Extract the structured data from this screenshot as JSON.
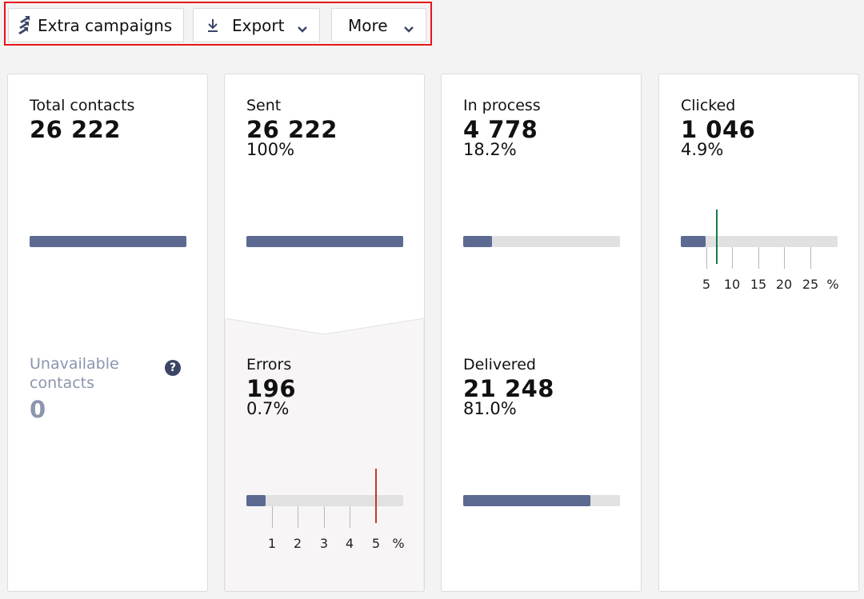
{
  "toolbar": {
    "extra_label": "Extra campaigns",
    "export_label": "Export",
    "more_label": "More"
  },
  "cards": {
    "total": {
      "label": "Total contacts",
      "value": "26 222",
      "bar_fraction": 1.0,
      "unavailable_label": "Unavailable contacts",
      "unavailable_value": "0",
      "help_glyph": "?"
    },
    "sent": {
      "label": "Sent",
      "value": "26 222",
      "percent": "100%",
      "bar_fraction": 1.0
    },
    "errors": {
      "label": "Errors",
      "value": "196",
      "percent": "0.7%",
      "bar_fraction": 0.12,
      "scale_ticks": [
        "1",
        "2",
        "3",
        "4",
        "5"
      ],
      "scale_unit": "%",
      "threshold": 5,
      "marker_color": "#c0392b"
    },
    "in_process": {
      "label": "In process",
      "value": "4 778",
      "percent": "18.2%",
      "bar_fraction": 0.182
    },
    "delivered": {
      "label": "Delivered",
      "value": "21 248",
      "percent": "81.0%",
      "bar_fraction": 0.81
    },
    "clicked": {
      "label": "Clicked",
      "value": "1 046",
      "percent": "4.9%",
      "bar_fraction": 0.16,
      "scale_ticks": [
        "5",
        "10",
        "15",
        "20",
        "25"
      ],
      "scale_unit": "%",
      "threshold": 7,
      "marker_color": "#1a7a4c"
    }
  },
  "colors": {
    "bar_fill": "#5c6a91",
    "bar_track": "#e1e1e1",
    "highlight_border": "#e8151b"
  }
}
